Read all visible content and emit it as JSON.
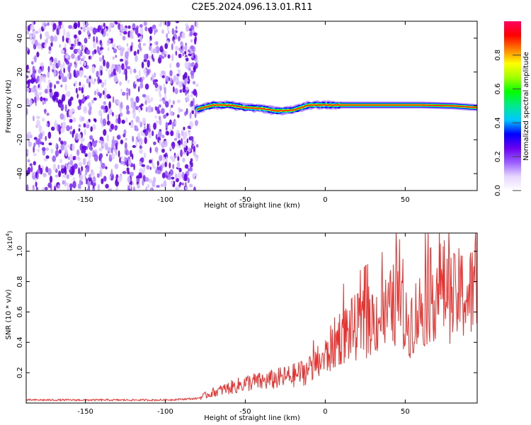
{
  "figure": {
    "title": "C2E5.2024.096.13.01.R11"
  },
  "colors": {
    "accent": "#e8322f",
    "colormap": [
      "#ffffff",
      "#e6d6ff",
      "#9a5cff",
      "#6a00f0",
      "#0000ff",
      "#00c8ff",
      "#00e890",
      "#00ff00",
      "#a0ff00",
      "#ffff00",
      "#ff8000",
      "#ff0000",
      "#ff0060"
    ]
  },
  "chart_data": [
    {
      "type": "heatmap",
      "xlabel": "Height of straight line (km)",
      "ylabel": "Frequency (Hz)",
      "xlim": [
        -187,
        95
      ],
      "ylim": [
        -50,
        50
      ],
      "x_ticks": [
        -150,
        -100,
        -50,
        0,
        50
      ],
      "y_ticks": [
        -40,
        -20,
        0,
        20,
        40
      ],
      "noise_region_x": [
        -187,
        -80
      ],
      "signal_ridge": {
        "x": [
          -80,
          -70,
          -60,
          -50,
          -40,
          -30,
          -20,
          -10,
          0,
          10,
          20,
          40,
          60,
          80,
          95
        ],
        "freq": [
          -2,
          0.5,
          0.5,
          -1,
          -1.5,
          -3,
          -2.5,
          0.5,
          0.5,
          0.5,
          0.5,
          0.5,
          0.5,
          0,
          -1
        ]
      },
      "colorbar": {
        "label": "Normalized spectral amplitude",
        "range": [
          0,
          1
        ],
        "ticks": [
          "0.0",
          "0.2",
          "0.4",
          "0.6",
          "0.8"
        ]
      }
    },
    {
      "type": "line",
      "xlabel": "Height of straight line (km)",
      "ylabel": "SNR (10 * v/v)",
      "multiplier": "(x10",
      "multiplier_exp": "4",
      "xlim": [
        -187,
        95
      ],
      "ylim": [
        0,
        1.12
      ],
      "x_ticks": [
        -150,
        -100,
        -50,
        0,
        50
      ],
      "y_ticks": [
        "0.2",
        "0.4",
        "0.6",
        "0.8",
        "1.0"
      ],
      "series": [
        {
          "color": "#e8322f",
          "x": [
            -187,
            -150,
            -100,
            -80,
            -75,
            -70,
            -60,
            -50,
            -45,
            -40,
            -30,
            -20,
            -10,
            -5,
            0,
            5,
            10,
            20,
            30,
            40,
            45,
            50,
            60,
            65,
            70,
            75,
            80,
            85,
            90,
            95
          ],
          "y": [
            0.02,
            0.02,
            0.02,
            0.03,
            0.05,
            0.07,
            0.1,
            0.13,
            0.14,
            0.14,
            0.16,
            0.18,
            0.22,
            0.26,
            0.3,
            0.38,
            0.45,
            0.5,
            0.55,
            0.6,
            0.68,
            0.5,
            0.62,
            0.7,
            0.75,
            0.75,
            0.68,
            0.72,
            0.7,
            0.8
          ]
        }
      ]
    }
  ]
}
